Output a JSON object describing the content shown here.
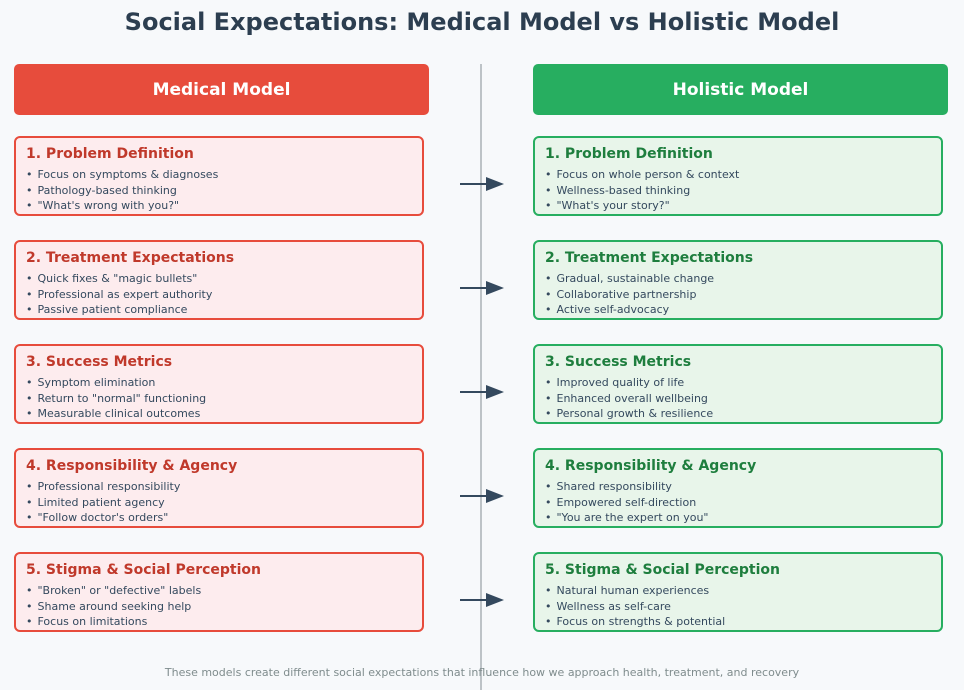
{
  "title": "Social Expectations: Medical Model vs Holistic Model",
  "medical": {
    "header": "Medical Model",
    "cards": [
      {
        "title": "1. Problem Definition",
        "items": [
          "Focus on symptoms & diagnoses",
          "Pathology-based thinking",
          "\"What's wrong with you?\""
        ]
      },
      {
        "title": "2. Treatment Expectations",
        "items": [
          "Quick fixes & \"magic bullets\"",
          "Professional as expert authority",
          "Passive patient compliance"
        ]
      },
      {
        "title": "3. Success Metrics",
        "items": [
          "Symptom elimination",
          "Return to \"normal\" functioning",
          "Measurable clinical outcomes"
        ]
      },
      {
        "title": "4. Responsibility & Agency",
        "items": [
          "Professional responsibility",
          "Limited patient agency",
          "\"Follow doctor's orders\""
        ]
      },
      {
        "title": "5. Stigma & Social Perception",
        "items": [
          "\"Broken\" or \"defective\" labels",
          "Shame around seeking help",
          "Focus on limitations"
        ]
      }
    ]
  },
  "holistic": {
    "header": "Holistic Model",
    "cards": [
      {
        "title": "1. Problem Definition",
        "items": [
          "Focus on whole person & context",
          "Wellness-based thinking",
          "\"What's your story?\""
        ]
      },
      {
        "title": "2. Treatment Expectations",
        "items": [
          "Gradual, sustainable change",
          "Collaborative partnership",
          "Active self-advocacy"
        ]
      },
      {
        "title": "3. Success Metrics",
        "items": [
          "Improved quality of life",
          "Enhanced overall wellbeing",
          "Personal growth & resilience"
        ]
      },
      {
        "title": "4. Responsibility & Agency",
        "items": [
          "Shared responsibility",
          "Empowered self-direction",
          "\"You are the expert on you\""
        ]
      },
      {
        "title": "5. Stigma & Social Perception",
        "items": [
          "Natural human experiences",
          "Wellness as self-care",
          "Focus on strengths & potential"
        ]
      }
    ]
  },
  "footer": "These models create different social expectations that influence how we approach health, treatment, and recovery",
  "colors": {
    "medical_accent": "#e74c3c",
    "medical_bg": "#fdecee",
    "holistic_accent": "#27ae60",
    "holistic_bg": "#e8f5ea",
    "arrow": "#34495e"
  },
  "arrow_icon": "arrow-right-icon"
}
